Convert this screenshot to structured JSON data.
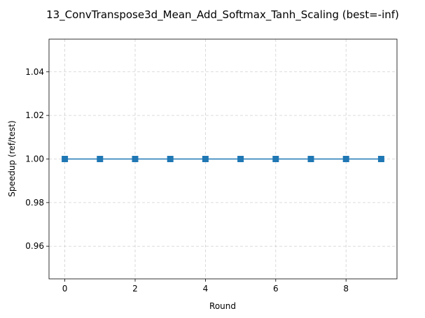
{
  "chart_data": {
    "type": "line",
    "title": "13_ConvTranspose3d_Mean_Add_Softmax_Tanh_Scaling (best=-inf)",
    "xlabel": "Round",
    "ylabel": "Speedup (ref/test)",
    "xlim": [
      -0.45,
      9.45
    ],
    "ylim": [
      0.945,
      1.055
    ],
    "xticks": [
      0,
      2,
      4,
      6,
      8
    ],
    "yticks": [
      0.96,
      0.98,
      1.0,
      1.02,
      1.04
    ],
    "ytick_labels": [
      "0.96",
      "0.98",
      "1.00",
      "1.02",
      "1.04"
    ],
    "grid": true,
    "series": [
      {
        "x": [
          0,
          1,
          2,
          3,
          4,
          5,
          6,
          7,
          8,
          9
        ],
        "y": [
          1.0,
          1.0,
          1.0,
          1.0,
          1.0,
          1.0,
          1.0,
          1.0,
          1.0,
          1.0
        ],
        "color": "#1f77b4",
        "marker": "square"
      }
    ]
  }
}
